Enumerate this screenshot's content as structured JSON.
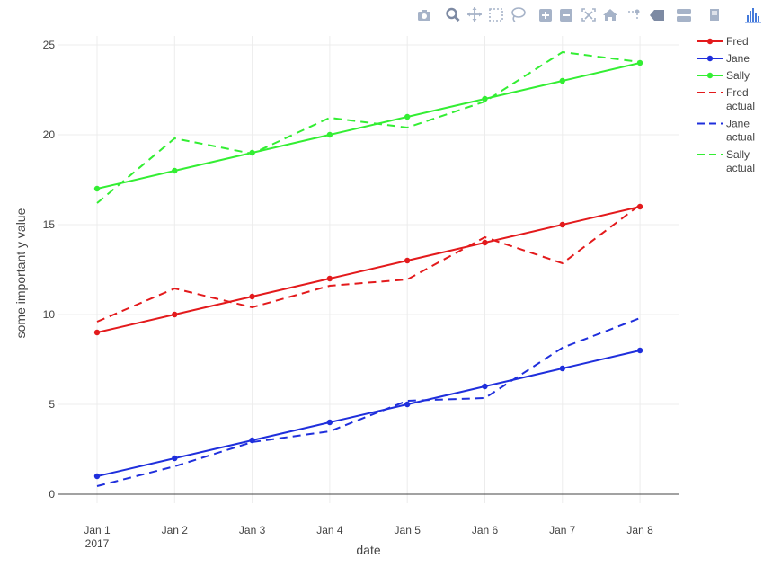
{
  "modebar": {
    "buttons": [
      {
        "name": "camera-icon",
        "title": "Download plot as a png"
      },
      {
        "name": "zoom-icon",
        "title": "Zoom"
      },
      {
        "name": "pan-icon",
        "title": "Pan"
      },
      {
        "name": "box-select-icon",
        "title": "Box Select"
      },
      {
        "name": "lasso-select-icon",
        "title": "Lasso Select"
      },
      {
        "name": "zoom-in-icon",
        "title": "Zoom in"
      },
      {
        "name": "zoom-out-icon",
        "title": "Zoom out"
      },
      {
        "name": "autoscale-icon",
        "title": "Autoscale"
      },
      {
        "name": "home-icon",
        "title": "Reset axes"
      },
      {
        "name": "spike-lines-icon",
        "title": "Toggle Spike Lines"
      },
      {
        "name": "hover-closest-icon",
        "title": "Show closest data on hover"
      },
      {
        "name": "hover-compare-icon",
        "title": "Compare data on hover"
      },
      {
        "name": "edit-chart-icon",
        "title": "Edit in Chart Studio"
      },
      {
        "name": "plotly-logo-icon",
        "title": "Produced with Plotly"
      }
    ]
  },
  "chart_data": {
    "type": "line",
    "xlabel": "date",
    "ylabel": "some important y value",
    "x": [
      "2017-01-01",
      "2017-01-02",
      "2017-01-03",
      "2017-01-04",
      "2017-01-05",
      "2017-01-06",
      "2017-01-07",
      "2017-01-08"
    ],
    "x_tick_labels": [
      "Jan 1",
      "Jan 2",
      "Jan 3",
      "Jan 4",
      "Jan 5",
      "Jan 6",
      "Jan 7",
      "Jan 8"
    ],
    "x_tick_sublabel": "2017",
    "ylim": [
      -0.5,
      25.5
    ],
    "y_ticks": [
      0,
      5,
      10,
      15,
      20,
      25
    ],
    "grid": true,
    "legend_position": "top-right",
    "series": [
      {
        "name": "Fred",
        "color": "#e31a1c",
        "dash": "solid",
        "markers": true,
        "values": [
          9,
          10,
          11,
          12,
          13,
          14,
          15,
          16
        ]
      },
      {
        "name": "Jane",
        "color": "#1f2fdc",
        "dash": "solid",
        "markers": true,
        "values": [
          1,
          2,
          3,
          4,
          5,
          6,
          7,
          8
        ]
      },
      {
        "name": "Sally",
        "color": "#33ee33",
        "dash": "solid",
        "markers": true,
        "values": [
          17,
          18,
          19,
          20,
          21,
          22,
          23,
          24
        ]
      },
      {
        "name": "Fred actual",
        "legend_lines": [
          "Fred",
          "actual"
        ],
        "color": "#e31a1c",
        "dash": "dash",
        "markers": false,
        "values": [
          9.6,
          11.45,
          10.4,
          11.6,
          11.95,
          14.3,
          12.85,
          16.1
        ]
      },
      {
        "name": "Jane actual",
        "legend_lines": [
          "Jane",
          "actual"
        ],
        "color": "#1f2fdc",
        "dash": "dash",
        "markers": false,
        "values": [
          0.45,
          1.55,
          2.9,
          3.5,
          5.2,
          5.35,
          8.15,
          9.8
        ]
      },
      {
        "name": "Sally actual",
        "legend_lines": [
          "Sally",
          "actual"
        ],
        "color": "#33ee33",
        "dash": "dash",
        "markers": false,
        "values": [
          16.2,
          19.8,
          18.95,
          20.95,
          20.4,
          21.85,
          24.6,
          24.05
        ]
      }
    ]
  }
}
